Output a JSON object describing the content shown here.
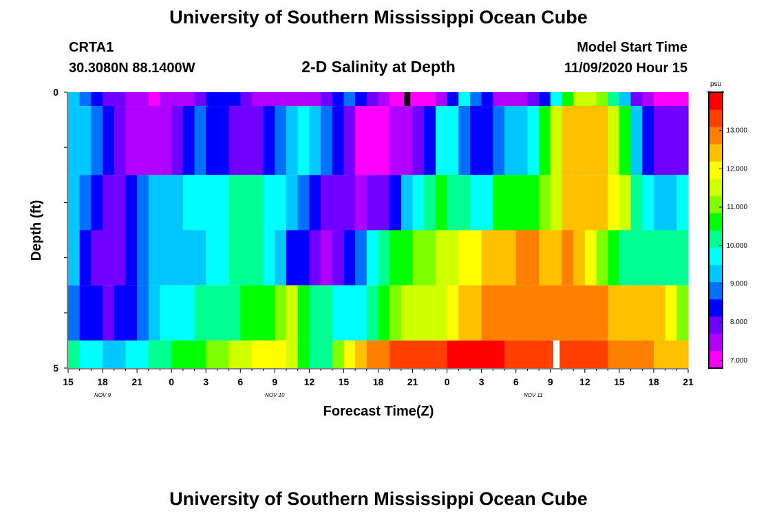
{
  "header": {
    "title": "University of Southern Mississippi Ocean Cube",
    "station": "CRTA1",
    "coords": "30.3080N 88.1400W",
    "subtitle": "2-D Salinity at Depth",
    "model_start_label": "Model Start Time",
    "model_start_value": "11/09/2020 Hour 15"
  },
  "footer": {
    "title": "University of Southern Mississippi Ocean Cube"
  },
  "chart_data": {
    "type": "heatmap",
    "xlabel": "Forecast Time(Z)",
    "ylabel": "Depth (ft)",
    "x_start_hour": 15,
    "x_hours": 54,
    "x_tick_labels": [
      "15",
      "18",
      "21",
      "0",
      "3",
      "6",
      "9",
      "12",
      "15",
      "18",
      "21",
      "0",
      "3",
      "6",
      "9",
      "12",
      "15",
      "18",
      "21"
    ],
    "date_labels": [
      {
        "label": "NOV  9",
        "tick_index": 1
      },
      {
        "label": "NOV  10",
        "tick_index": 6
      },
      {
        "label": "NOV  11",
        "tick_index": 13.5
      }
    ],
    "y_tick_labels": [
      "0",
      "5"
    ],
    "ylim": [
      0,
      5
    ],
    "colorbar": {
      "unit": "psu",
      "range": [
        6.8,
        14.0
      ],
      "ticks": [
        "13.000",
        "12.000",
        "11.000",
        "10.000",
        "9.000",
        "8.000",
        "7.000"
      ],
      "tick_values": [
        13,
        12,
        11,
        10,
        9,
        8,
        7
      ],
      "colors": [
        "#ff00ff",
        "#b000ff",
        "#7000ff",
        "#0000ff",
        "#0070ff",
        "#00c8ff",
        "#00ffff",
        "#00ff90",
        "#00ff00",
        "#80ff00",
        "#d0ff00",
        "#ffff00",
        "#ffc000",
        "#ff8000",
        "#ff4000",
        "#ff0000"
      ]
    },
    "layer_depths_ft": [
      0.25,
      1.5,
      2.5,
      3.5,
      4.5,
      5.0
    ],
    "layers": [
      [
        9.1,
        8.8,
        8.4,
        8.0,
        7.8,
        7.5,
        7.3,
        7.2,
        7.3,
        7.4,
        7.6,
        7.9,
        8.3,
        8.6,
        8.2,
        7.8,
        7.6,
        7.5,
        7.4,
        7.3,
        7.3,
        7.6,
        8.1,
        8.5,
        8.7,
        8.5,
        8.0,
        7.5,
        7.1,
        6.8,
        6.9,
        7.2,
        7.6,
        8.5,
        9.5,
        9.0,
        8.2,
        7.5,
        7.4,
        7.5,
        7.8,
        8.5,
        9.5,
        10.5,
        11.3,
        11.5,
        11.0,
        10.3,
        9.3,
        8.0,
        7.3,
        7.0,
        6.9,
        6.9
      ],
      [
        9.2,
        9.2,
        8.8,
        8.3,
        7.8,
        7.5,
        7.5,
        7.5,
        7.6,
        7.8,
        8.2,
        8.7,
        8.5,
        8.2,
        8.0,
        8.0,
        8.1,
        8.3,
        8.8,
        9.3,
        9.5,
        9.3,
        9.0,
        8.4,
        7.7,
        7.2,
        7.0,
        7.1,
        7.4,
        7.6,
        7.7,
        8.5,
        9.6,
        9.6,
        9.0,
        8.5,
        8.3,
        8.8,
        9.2,
        9.4,
        9.6,
        10.5,
        11.5,
        12.3,
        12.6,
        12.6,
        12.3,
        11.5,
        10.5,
        9.3,
        8.4,
        8.1,
        8.0,
        8.0
      ],
      [
        9.3,
        8.8,
        8.3,
        8.0,
        8.1,
        8.4,
        8.9,
        9.2,
        9.4,
        9.4,
        9.5,
        9.6,
        9.8,
        9.9,
        10.1,
        10.2,
        10.0,
        9.8,
        9.6,
        9.3,
        9.0,
        8.6,
        8.1,
        7.9,
        7.7,
        7.6,
        7.7,
        7.9,
        8.5,
        9.2,
        9.5,
        10.2,
        10.6,
        10.3,
        10.0,
        9.8,
        9.9,
        10.4,
        10.6,
        10.6,
        10.7,
        10.9,
        11.7,
        12.4,
        12.5,
        12.6,
        12.5,
        12.2,
        11.3,
        10.3,
        9.6,
        9.4,
        9.4,
        9.6
      ],
      [
        9.1,
        8.5,
        8.0,
        7.8,
        8.0,
        8.5,
        8.9,
        9.1,
        9.2,
        9.2,
        9.3,
        9.4,
        9.6,
        9.8,
        10.0,
        10.1,
        10.0,
        9.6,
        9.1,
        8.6,
        8.2,
        7.8,
        7.6,
        7.8,
        8.3,
        9.0,
        9.6,
        10.1,
        10.5,
        10.8,
        11.0,
        11.1,
        11.3,
        11.6,
        11.9,
        12.1,
        12.3,
        12.5,
        12.6,
        12.7,
        12.7,
        12.6,
        12.6,
        12.7,
        12.5,
        12.0,
        11.2,
        10.7,
        10.3,
        10.1,
        10.0,
        10.0,
        10.0,
        10.0
      ],
      [
        9.0,
        8.6,
        8.2,
        8.1,
        8.3,
        8.6,
        9.0,
        9.3,
        9.5,
        9.7,
        9.9,
        10.1,
        10.2,
        10.2,
        10.3,
        10.4,
        10.5,
        10.7,
        11.0,
        11.3,
        10.8,
        10.3,
        10.0,
        9.7,
        9.5,
        9.9,
        10.3,
        10.7,
        11.2,
        11.5,
        11.6,
        11.4,
        11.5,
        11.8,
        12.3,
        12.6,
        12.8,
        12.9,
        12.9,
        13.0,
        13.0,
        12.9,
        12.9,
        12.9,
        12.9,
        12.8,
        12.7,
        12.6,
        12.5,
        12.6,
        12.6,
        12.4,
        12.0,
        11.0
      ],
      [
        10.2,
        9.9,
        9.5,
        9.2,
        9.1,
        9.5,
        9.8,
        10.0,
        10.2,
        10.4,
        10.6,
        10.8,
        11.0,
        11.2,
        11.4,
        11.6,
        11.8,
        12.0,
        12.2,
        11.5,
        10.6,
        10.0,
        10.3,
        11.0,
        11.8,
        12.4,
        12.8,
        13.0,
        13.2,
        13.3,
        13.4,
        13.5,
        13.5,
        13.6,
        13.6,
        13.7,
        13.6,
        13.6,
        13.5,
        13.5,
        13.5,
        13.4,
        13.4,
        13.3,
        13.3,
        13.2,
        13.1,
        13.0,
        12.9,
        12.8,
        12.7,
        12.6,
        12.5,
        12.5
      ]
    ],
    "masked_cells": [
      {
        "layer": 0,
        "hour_index": 29,
        "color": "#000000"
      },
      {
        "layer": 5,
        "hour_index": 42,
        "color": "#ffffff"
      }
    ]
  }
}
